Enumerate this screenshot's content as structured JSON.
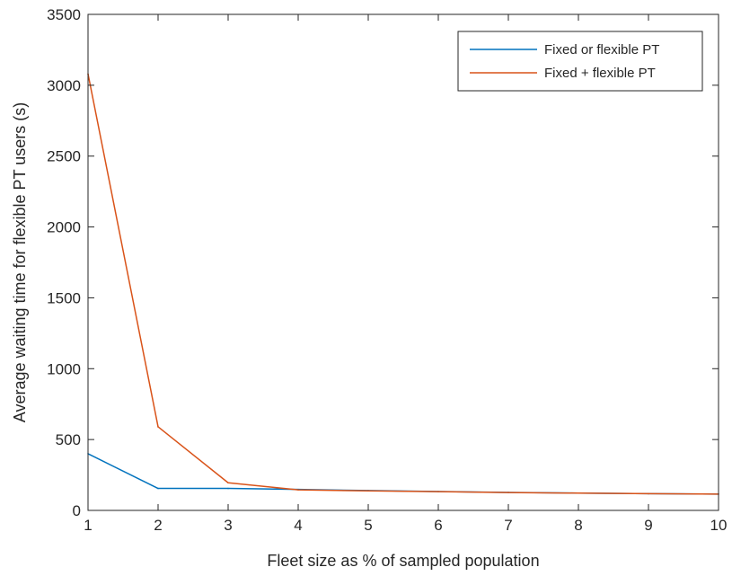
{
  "chart_data": {
    "type": "line",
    "title": "",
    "xlabel": "Fleet size as % of sampled population",
    "ylabel": "Average waiting time for flexible PT users (s)",
    "xlim": [
      1,
      10
    ],
    "ylim": [
      0,
      3500
    ],
    "x": [
      1,
      2,
      3,
      4,
      5,
      6,
      7,
      8,
      9,
      10
    ],
    "x_ticks": [
      "1",
      "2",
      "3",
      "4",
      "5",
      "6",
      "7",
      "8",
      "9",
      "10"
    ],
    "y_ticks": [
      "0",
      "500",
      "1000",
      "1500",
      "2000",
      "2500",
      "3000",
      "3500"
    ],
    "y_tick_values": [
      0,
      500,
      1000,
      1500,
      2000,
      2500,
      3000,
      3500
    ],
    "grid": false,
    "legend_position": "top-right",
    "series": [
      {
        "name": "Fixed or flexible PT",
        "color": "#0072BD",
        "values": [
          400,
          155,
          155,
          148,
          140,
          133,
          127,
          122,
          118,
          115
        ]
      },
      {
        "name": "Fixed + flexible PT",
        "color": "#D95319",
        "values": [
          3080,
          590,
          195,
          145,
          138,
          132,
          126,
          122,
          118,
          115
        ]
      }
    ]
  }
}
